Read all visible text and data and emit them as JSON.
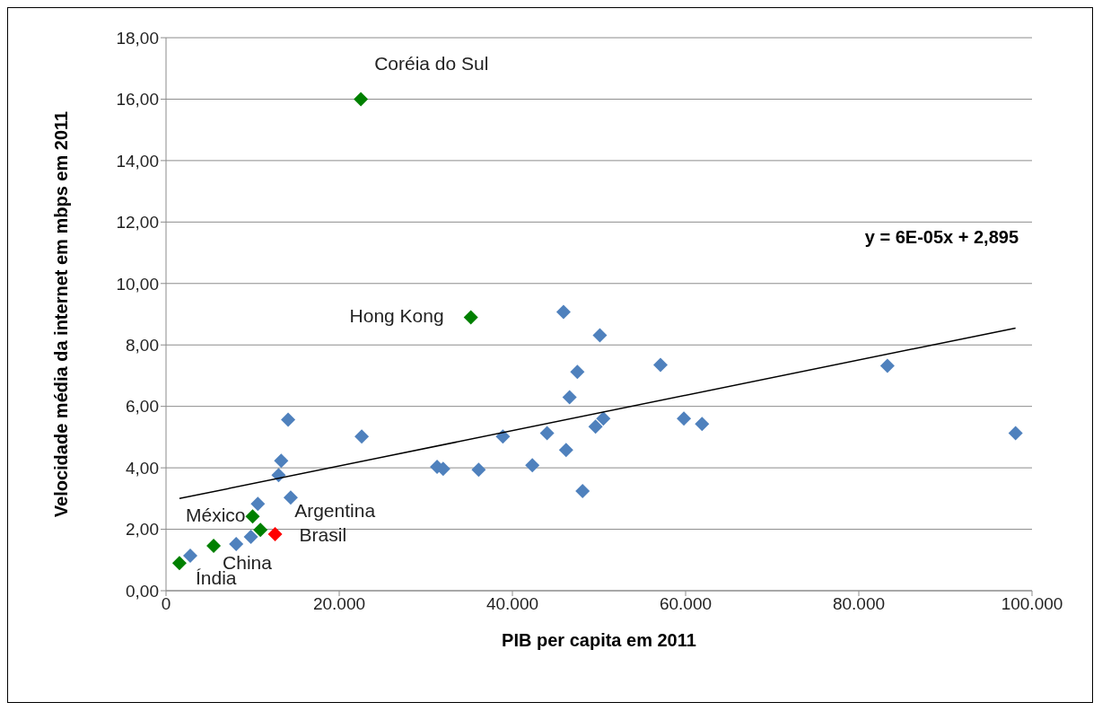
{
  "chart_data": {
    "type": "scatter",
    "xlabel": "PIB per capita em 2011",
    "ylabel": "Velocidade média da internet em mbps em 2011",
    "xlim": [
      0,
      100000
    ],
    "ylim": [
      0,
      18
    ],
    "xticks": [
      {
        "value": 0,
        "label": "0"
      },
      {
        "value": 20000,
        "label": "20.000"
      },
      {
        "value": 40000,
        "label": "40.000"
      },
      {
        "value": 60000,
        "label": "60.000"
      },
      {
        "value": 80000,
        "label": "80.000"
      },
      {
        "value": 100000,
        "label": "100.000"
      }
    ],
    "yticks": [
      {
        "value": 0,
        "label": "0,00"
      },
      {
        "value": 2,
        "label": "2,00"
      },
      {
        "value": 4,
        "label": "4,00"
      },
      {
        "value": 6,
        "label": "6,00"
      },
      {
        "value": 8,
        "label": "8,00"
      },
      {
        "value": 10,
        "label": "10,00"
      },
      {
        "value": 12,
        "label": "12,00"
      },
      {
        "value": 14,
        "label": "14,00"
      },
      {
        "value": 16,
        "label": "16,00"
      },
      {
        "value": 18,
        "label": "18,00"
      }
    ],
    "grid": "y",
    "marker": "diamond",
    "series": [
      {
        "color": "#4f81bd",
        "x": [
          2800,
          8100,
          9800,
          10600,
          13000,
          13300,
          14100,
          14400,
          22600,
          31300,
          32000,
          36100,
          38900,
          45900,
          50100,
          47500,
          57100,
          46600,
          50500,
          49600,
          59800,
          61900,
          44000,
          46200,
          42300,
          48100,
          83300,
          98100
        ],
        "values": [
          1.14,
          1.52,
          1.75,
          2.83,
          3.76,
          4.23,
          5.57,
          3.03,
          5.02,
          4.03,
          3.97,
          3.94,
          5.02,
          9.07,
          8.31,
          7.12,
          7.35,
          6.3,
          5.6,
          5.34,
          5.6,
          5.43,
          5.13,
          4.58,
          4.08,
          3.24,
          7.32,
          5.13
        ]
      },
      {
        "color": "#008000",
        "x": [
          22500,
          35200,
          10000,
          10900,
          5500,
          1550
        ],
        "values": [
          16.0,
          8.9,
          2.42,
          1.98,
          1.46,
          0.9
        ]
      },
      {
        "color": "#ff0000",
        "x": [
          12600
        ],
        "values": [
          1.84
        ]
      },
      {
        "type": "line",
        "color": "#000000",
        "marker": "none",
        "x": [
          1550,
          98100
        ],
        "values": [
          3.0,
          8.55
        ]
      }
    ],
    "annotations": [
      {
        "text": "Coréia do Sul",
        "x": 22500,
        "y": 16.0
      },
      {
        "text": "Hong Kong",
        "x": 35200,
        "y": 8.9
      },
      {
        "text": "México",
        "x": 10000,
        "y": 2.42
      },
      {
        "text": "Argentina",
        "x": 10900,
        "y": 1.98
      },
      {
        "text": "Brasil",
        "x": 12600,
        "y": 1.84
      },
      {
        "text": "China",
        "x": 5500,
        "y": 1.46
      },
      {
        "text": "Índia",
        "x": 1550,
        "y": 0.9
      },
      "y = 6E-05x + 2,895"
    ]
  }
}
